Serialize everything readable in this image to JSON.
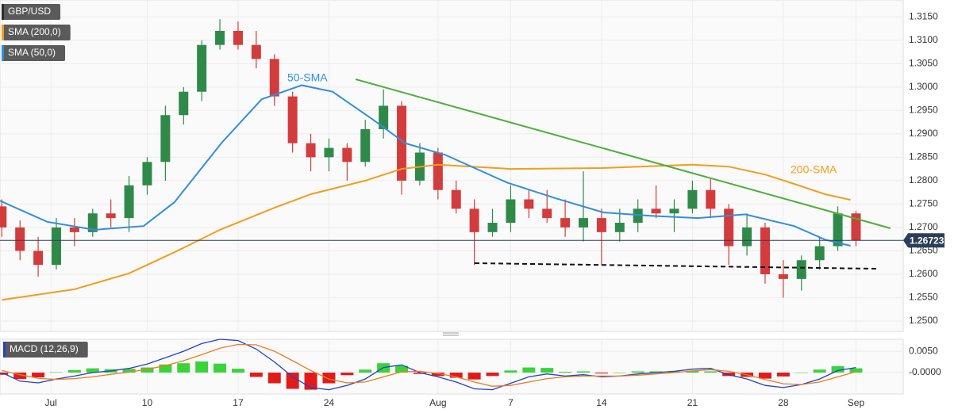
{
  "chart_data": [
    {
      "type": "candlestick",
      "xlim": [
        -8.1,
        41.6
      ],
      "ylim": [
        1.2478,
        1.3186
      ],
      "xticks": [
        {
          "value": -5.3,
          "label": "Jul"
        },
        {
          "value": 0,
          "label": "10"
        },
        {
          "value": 5,
          "label": "17"
        },
        {
          "value": 10,
          "label": "24"
        },
        {
          "value": 16,
          "label": "Aug"
        },
        {
          "value": 20,
          "label": "7"
        },
        {
          "value": 25,
          "label": "14"
        },
        {
          "value": 30,
          "label": "21"
        },
        {
          "value": 35,
          "label": "28"
        },
        {
          "value": 39,
          "label": "Sep"
        }
      ],
      "yticks": [
        {
          "value": 1.25,
          "label": "1.2500"
        },
        {
          "value": 1.255,
          "label": "1.2550"
        },
        {
          "value": 1.26,
          "label": "1.2600"
        },
        {
          "value": 1.265,
          "label": "1.2650"
        },
        {
          "value": 1.27,
          "label": "1.2700"
        },
        {
          "value": 1.275,
          "label": "1.2750"
        },
        {
          "value": 1.28,
          "label": "1.2800"
        },
        {
          "value": 1.285,
          "label": "1.2850"
        },
        {
          "value": 1.29,
          "label": "1.2900"
        },
        {
          "value": 1.295,
          "label": "1.2950"
        },
        {
          "value": 1.3,
          "label": "1.3000"
        },
        {
          "value": 1.305,
          "label": "1.3050"
        },
        {
          "value": 1.31,
          "label": "1.3100"
        },
        {
          "value": 1.315,
          "label": "1.3150"
        }
      ],
      "grid": true,
      "last_price": 1.26723,
      "annotations": [
        "50-SMA",
        "200-SMA"
      ],
      "series": [
        {
          "name": "GBP/USD",
          "up_color": "#2f8a4a",
          "down_color": "#d23c3c",
          "x": [
            -8,
            -7,
            -6,
            -5,
            -4,
            -3,
            -2,
            -1,
            0,
            1,
            2,
            3,
            4,
            5,
            6,
            7,
            8,
            9,
            10,
            11,
            12,
            13,
            14,
            15,
            16,
            17,
            18,
            19,
            20,
            21,
            22,
            23,
            24,
            25,
            26,
            27,
            28,
            29,
            30,
            31,
            32,
            33,
            34,
            35,
            36,
            37,
            38,
            39
          ],
          "open": [
            1.2745,
            1.27,
            1.265,
            1.262,
            1.27,
            1.269,
            1.273,
            1.272,
            1.279,
            1.284,
            1.294,
            1.299,
            1.309,
            1.312,
            1.309,
            1.306,
            1.298,
            1.288,
            1.285,
            1.287,
            1.284,
            1.291,
            1.296,
            1.28,
            1.286,
            1.278,
            1.274,
            1.269,
            1.271,
            1.276,
            1.274,
            1.272,
            1.27,
            1.272,
            1.269,
            1.271,
            1.274,
            1.273,
            1.274,
            1.278,
            1.274,
            1.266,
            1.27,
            1.26,
            1.259,
            1.263,
            1.266,
            1.273
          ],
          "high": [
            1.276,
            1.2715,
            1.268,
            1.272,
            1.272,
            1.274,
            1.276,
            1.281,
            1.285,
            1.296,
            1.3,
            1.31,
            1.3145,
            1.314,
            1.312,
            1.307,
            1.299,
            1.29,
            1.289,
            1.288,
            1.293,
            1.2995,
            1.297,
            1.288,
            1.287,
            1.28,
            1.276,
            1.274,
            1.279,
            1.278,
            1.278,
            1.276,
            1.282,
            1.274,
            1.274,
            1.276,
            1.279,
            1.276,
            1.28,
            1.2805,
            1.275,
            1.273,
            1.271,
            1.263,
            1.264,
            1.268,
            1.2745,
            1.2735
          ],
          "low": [
            1.268,
            1.263,
            1.2595,
            1.261,
            1.266,
            1.268,
            1.27,
            1.269,
            1.277,
            1.28,
            1.292,
            1.297,
            1.308,
            1.308,
            1.304,
            1.296,
            1.286,
            1.282,
            1.282,
            1.28,
            1.283,
            1.289,
            1.277,
            1.279,
            1.276,
            1.273,
            1.262,
            1.268,
            1.269,
            1.272,
            1.271,
            1.268,
            1.267,
            1.262,
            1.267,
            1.269,
            1.272,
            1.269,
            1.273,
            1.272,
            1.262,
            1.264,
            1.258,
            1.255,
            1.2565,
            1.261,
            1.265,
            1.266
          ],
          "close": [
            1.27,
            1.265,
            1.262,
            1.27,
            1.269,
            1.273,
            1.272,
            1.279,
            1.284,
            1.294,
            1.299,
            1.309,
            1.312,
            1.309,
            1.306,
            1.298,
            1.288,
            1.285,
            1.287,
            1.284,
            1.291,
            1.296,
            1.28,
            1.286,
            1.278,
            1.274,
            1.269,
            1.271,
            1.276,
            1.274,
            1.272,
            1.27,
            1.272,
            1.269,
            1.271,
            1.274,
            1.273,
            1.274,
            1.278,
            1.274,
            1.266,
            1.27,
            1.26,
            1.259,
            1.263,
            1.266,
            1.273,
            1.26723
          ]
        },
        {
          "name": "SMA (200,0)",
          "color": "#f59c1a",
          "x": [
            -8,
            -4,
            -1,
            1.5,
            4,
            7,
            9,
            12,
            14,
            16,
            20,
            25,
            30,
            32,
            34,
            35.6,
            37.3,
            38.7
          ],
          "values": [
            1.2545,
            1.2568,
            1.2602,
            1.2647,
            1.2695,
            1.2742,
            1.2771,
            1.28,
            1.2825,
            1.2834,
            1.2825,
            1.2827,
            1.2834,
            1.283,
            1.2813,
            1.2793,
            1.2771,
            1.2759
          ]
        },
        {
          "name": "SMA (50,0)",
          "color": "#2f8ee0",
          "x": [
            -8.1,
            -5.5,
            -2.9,
            -0.2,
            1.5,
            4.1,
            6.3,
            8.5,
            10.2,
            12.4,
            14.2,
            16.4,
            19.8,
            22.5,
            25.1,
            27.7,
            30.3,
            32.9,
            35.6,
            37.3,
            38.7
          ],
          "values": [
            1.2757,
            1.2712,
            1.2695,
            1.2703,
            1.2754,
            1.2881,
            1.2974,
            1.3004,
            1.299,
            1.2931,
            1.288,
            1.2855,
            1.2796,
            1.2762,
            1.2732,
            1.2725,
            1.272,
            1.2728,
            1.2703,
            1.2674,
            1.2661
          ]
        }
      ]
    },
    {
      "type": "macd",
      "title": "MACD (12,26,9)",
      "xlim": [
        -8.1,
        41.6
      ],
      "ylim": [
        -0.005,
        0.0078
      ],
      "yticks": [
        {
          "value": 0,
          "label": "-0.0000"
        },
        {
          "value": 0.005,
          "label": "0.0050"
        }
      ],
      "x": [
        -8,
        -7,
        -6,
        -5,
        -4,
        -3,
        -2,
        -1,
        0,
        1,
        2,
        3,
        4,
        5,
        6,
        7,
        8,
        9,
        10,
        11,
        12,
        13,
        14,
        15,
        16,
        17,
        18,
        19,
        20,
        21,
        22,
        23,
        24,
        25,
        26,
        27,
        28,
        29,
        30,
        31,
        32,
        33,
        34,
        35,
        36,
        37,
        38,
        39
      ],
      "macd_line": {
        "color": "#2040d0",
        "values": [
          0,
          -0.002,
          -0.0024,
          -0.0015,
          -0.0008,
          0,
          0.0004,
          0.001,
          0.002,
          0.0035,
          0.005,
          0.0068,
          0.0078,
          0.0075,
          0.0055,
          0.0025,
          -0.001,
          -0.0035,
          -0.004,
          -0.003,
          -0.0015,
          0.0012,
          0.0018,
          0,
          -0.001,
          -0.0022,
          -0.0038,
          -0.004,
          -0.0025,
          -0.001,
          -0.0003,
          -0.0008,
          -0.0005,
          -0.001,
          -0.0008,
          -0.0003,
          0,
          0.0003,
          0.0008,
          0.001,
          -0.0005,
          -0.0015,
          -0.003,
          -0.0035,
          -0.0028,
          -0.0015,
          0.0005,
          0.0012
        ]
      },
      "signal_line": {
        "color": "#f07a1b",
        "values": [
          0.0005,
          -0.0005,
          -0.0013,
          -0.0016,
          -0.0014,
          -0.001,
          -0.0004,
          0.0001,
          0.0008,
          0.0016,
          0.0028,
          0.0042,
          0.0057,
          0.0066,
          0.0065,
          0.005,
          0.0028,
          0.0005,
          -0.0015,
          -0.0024,
          -0.0022,
          -0.001,
          0.0002,
          0.0003,
          -0.0002,
          -0.001,
          -0.0022,
          -0.0032,
          -0.003,
          -0.0022,
          -0.0014,
          -0.001,
          -0.0008,
          -0.0008,
          -0.0008,
          -0.0006,
          -0.0003,
          0,
          0.0004,
          0.0007,
          0.0003,
          -0.0005,
          -0.0016,
          -0.0026,
          -0.0028,
          -0.0022,
          -0.001,
          0.0002
        ]
      },
      "histogram": {
        "up_color": "#3ad33a",
        "down_color": "#e01b1b",
        "values": [
          -0.0005,
          -0.0015,
          -0.0011,
          0.0001,
          0.0006,
          0.001,
          0.0008,
          0.0009,
          0.0012,
          0.0019,
          0.0022,
          0.0026,
          0.0021,
          0.0009,
          -0.001,
          -0.0025,
          -0.0038,
          -0.004,
          -0.0025,
          -0.0006,
          0.0007,
          0.0022,
          0.0016,
          -0.0003,
          -0.0008,
          -0.0012,
          -0.0016,
          -0.0008,
          0.0005,
          0.0012,
          0.0011,
          0.0002,
          0.0003,
          -0.0002,
          0,
          0.0003,
          0.0003,
          0.0003,
          0.0004,
          0.0003,
          -0.0008,
          -0.001,
          -0.0014,
          -0.0009,
          0,
          0.0007,
          0.0015,
          0.001
        ]
      }
    }
  ]
}
